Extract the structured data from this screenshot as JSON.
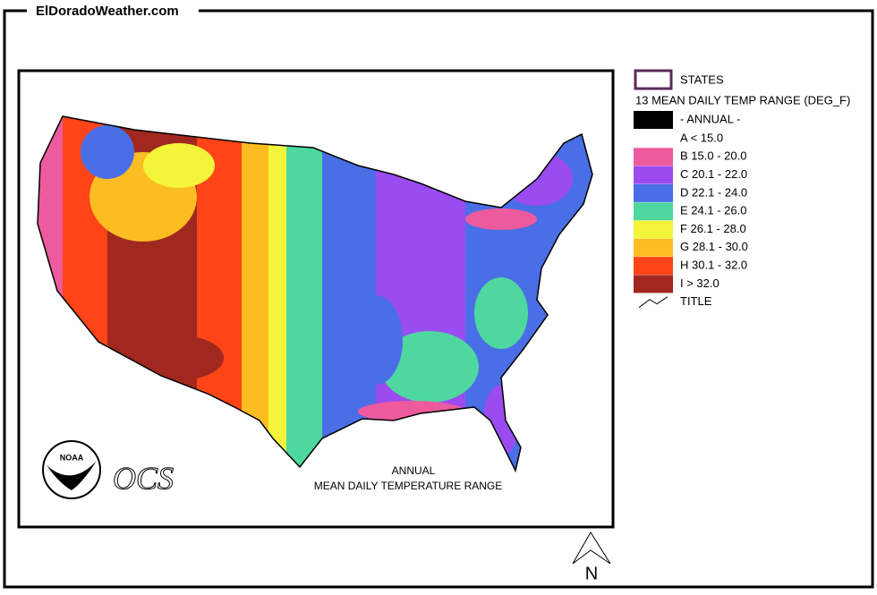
{
  "header": {
    "site": "ElDoradoWeather.com"
  },
  "legend": {
    "states": "STATES",
    "variable": "13 MEAN DAILY TEMP RANGE (DEG_F)",
    "period": "- ANNUAL -",
    "period_color": "#000000",
    "classes": [
      {
        "label": "A  < 15.0"
      },
      {
        "label": "B 15.0 - 20.0",
        "color": "#ee5a9e"
      },
      {
        "label": "C 20.1 - 22.0",
        "color": "#9a4cf0"
      },
      {
        "label": "D 22.1 - 24.0",
        "color": "#4a6ee6"
      },
      {
        "label": "E 24.1 - 26.0",
        "color": "#4ed8a0"
      },
      {
        "label": "F 26.1 - 28.0",
        "color": "#f2f53a"
      },
      {
        "label": "G 28.1 - 30.0",
        "color": "#fbbd22"
      },
      {
        "label": "H 30.1 - 32.0",
        "color": "#ff4418"
      },
      {
        "label": "I  > 32.0",
        "color": "#a0281e"
      }
    ],
    "title": "TITLE"
  },
  "map": {
    "title_lines": [
      "ANNUAL",
      "MEAN DAILY TEMPERATURE RANGE"
    ],
    "logo": "NOAA",
    "agency": "OCS",
    "north": "N"
  }
}
